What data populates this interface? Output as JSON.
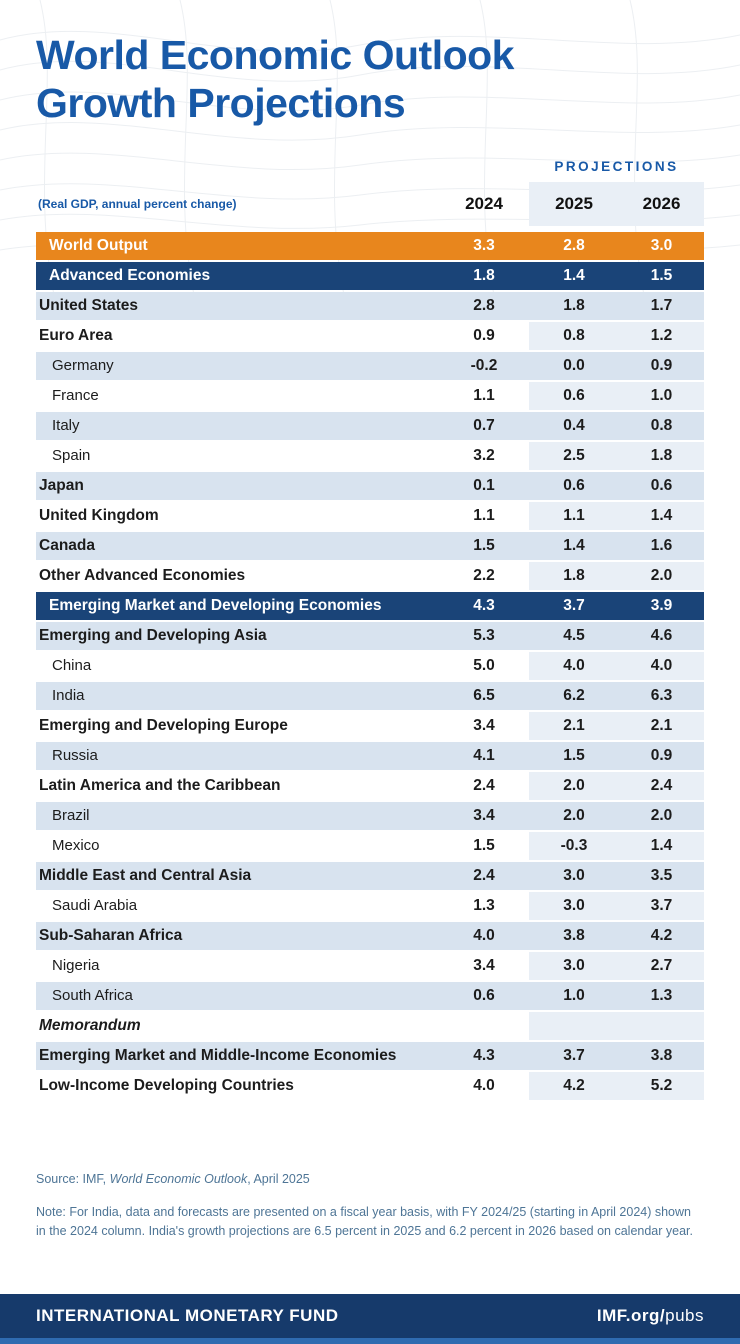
{
  "colors": {
    "title_blue": "#1859A7",
    "orange": "#E8861D",
    "navy": "#1A4478",
    "stripe": "#D8E3EF",
    "band": "#E9EFF6",
    "footer_navy": "#163A6B",
    "footer_strip": "#2F6BB0",
    "note_blue": "#4E7596"
  },
  "header": {
    "title_line1": "World Economic Outlook",
    "title_line2": "Growth Projections",
    "projections_label": "PROJECTIONS"
  },
  "chart_data": {
    "type": "table",
    "title": "World Economic Outlook Growth Projections",
    "subtitle": "(Real GDP, annual percent change)",
    "columns": [
      "2024",
      "2025",
      "2026"
    ],
    "projection_columns": [
      "2025",
      "2026"
    ],
    "rows": [
      {
        "label": "World Output",
        "level": "world",
        "values": [
          3.3,
          2.8,
          3.0
        ]
      },
      {
        "label": "Advanced Economies",
        "level": "group",
        "values": [
          1.8,
          1.4,
          1.5
        ]
      },
      {
        "label": "United States",
        "level": "region",
        "values": [
          2.8,
          1.8,
          1.7
        ]
      },
      {
        "label": "Euro Area",
        "level": "region",
        "values": [
          0.9,
          0.8,
          1.2
        ]
      },
      {
        "label": "Germany",
        "level": "country",
        "values": [
          -0.2,
          0.0,
          0.9
        ]
      },
      {
        "label": "France",
        "level": "country",
        "values": [
          1.1,
          0.6,
          1.0
        ]
      },
      {
        "label": "Italy",
        "level": "country",
        "values": [
          0.7,
          0.4,
          0.8
        ]
      },
      {
        "label": "Spain",
        "level": "country",
        "values": [
          3.2,
          2.5,
          1.8
        ]
      },
      {
        "label": "Japan",
        "level": "region",
        "values": [
          0.1,
          0.6,
          0.6
        ]
      },
      {
        "label": "United Kingdom",
        "level": "region",
        "values": [
          1.1,
          1.1,
          1.4
        ]
      },
      {
        "label": "Canada",
        "level": "region",
        "values": [
          1.5,
          1.4,
          1.6
        ]
      },
      {
        "label": "Other Advanced Economies",
        "level": "region",
        "values": [
          2.2,
          1.8,
          2.0
        ]
      },
      {
        "label": "Emerging Market and Developing Economies",
        "level": "group",
        "values": [
          4.3,
          3.7,
          3.9
        ]
      },
      {
        "label": "Emerging and Developing Asia",
        "level": "region",
        "values": [
          5.3,
          4.5,
          4.6
        ]
      },
      {
        "label": "China",
        "level": "country",
        "values": [
          5.0,
          4.0,
          4.0
        ]
      },
      {
        "label": "India",
        "level": "country",
        "values": [
          6.5,
          6.2,
          6.3
        ]
      },
      {
        "label": "Emerging and Developing Europe",
        "level": "region",
        "values": [
          3.4,
          2.1,
          2.1
        ]
      },
      {
        "label": "Russia",
        "level": "country",
        "values": [
          4.1,
          1.5,
          0.9
        ]
      },
      {
        "label": "Latin America and the Caribbean",
        "level": "region",
        "values": [
          2.4,
          2.0,
          2.4
        ]
      },
      {
        "label": "Brazil",
        "level": "country",
        "values": [
          3.4,
          2.0,
          2.0
        ]
      },
      {
        "label": "Mexico",
        "level": "country",
        "values": [
          1.5,
          -0.3,
          1.4
        ]
      },
      {
        "label": "Middle East and Central Asia",
        "level": "region",
        "values": [
          2.4,
          3.0,
          3.5
        ]
      },
      {
        "label": "Saudi Arabia",
        "level": "country",
        "values": [
          1.3,
          3.0,
          3.7
        ]
      },
      {
        "label": "Sub-Saharan Africa",
        "level": "region",
        "values": [
          4.0,
          3.8,
          4.2
        ]
      },
      {
        "label": "Nigeria",
        "level": "country",
        "values": [
          3.4,
          3.0,
          2.7
        ]
      },
      {
        "label": "South Africa",
        "level": "country",
        "values": [
          0.6,
          1.0,
          1.3
        ]
      },
      {
        "label": "Memorandum",
        "level": "memo",
        "values": []
      },
      {
        "label": "Emerging Market and Middle-Income Economies",
        "level": "region",
        "values": [
          4.3,
          3.7,
          3.8
        ]
      },
      {
        "label": "Low-Income Developing Countries",
        "level": "region",
        "values": [
          4.0,
          4.2,
          5.2
        ]
      }
    ]
  },
  "footnotes": {
    "source_prefix": "Source: IMF, ",
    "source_italic": "World Economic Outlook",
    "source_suffix": ", April 2025",
    "note": "Note: For India, data and forecasts are presented on a fiscal year basis, with FY 2024/25 (starting in April 2024) shown in the 2024 column. India's growth projections are 6.5 percent in 2025 and 6.2 percent in 2026 based on calendar year."
  },
  "footer": {
    "left": "INTERNATIONAL MONETARY FUND",
    "right_bold": "IMF.org/",
    "right_regular": "pubs"
  }
}
